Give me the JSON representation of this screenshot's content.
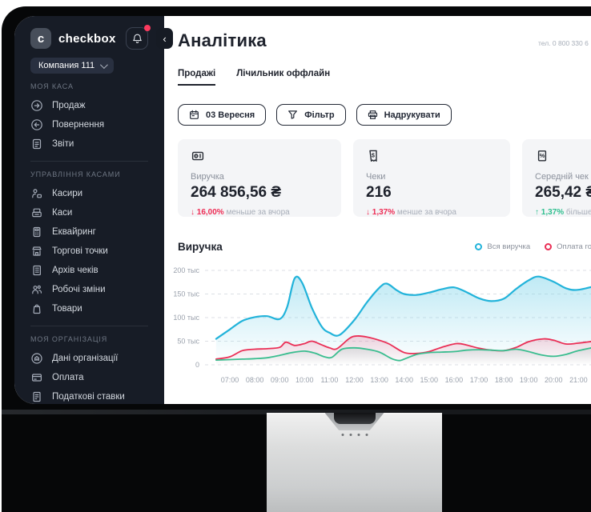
{
  "colors": {
    "sidebar_bg": "#171c26",
    "accent_red": "#ee2d55",
    "accent_green": "#2fbf8f",
    "notification_dot": "#fb3a5e",
    "card_bg": "#f4f5f7",
    "series_blue": "#22b3da",
    "series_red": "#ea2e55",
    "series_green": "#3abd8f"
  },
  "sidebar": {
    "logo": {
      "tile_letter": "c",
      "text": "checkbox"
    },
    "notifications": {
      "icon": "bell-icon",
      "has_badge": true
    },
    "company_selector": {
      "label": "Компания 111",
      "icon": "chevron-down-icon"
    },
    "sections": [
      {
        "title": "МОЯ КАСА",
        "items": [
          {
            "label": "Продаж",
            "icon": "sale-icon"
          },
          {
            "label": "Повернення",
            "icon": "refund-icon"
          },
          {
            "label": "Звіти",
            "icon": "reports-icon"
          }
        ]
      },
      {
        "title": "УПРАВЛІННЯ КАСАМИ",
        "items": [
          {
            "label": "Касири",
            "icon": "cashiers-icon"
          },
          {
            "label": "Каси",
            "icon": "cash-registers-icon"
          },
          {
            "label": "Еквайринг",
            "icon": "acquiring-icon"
          },
          {
            "label": "Торгові точки",
            "icon": "shops-icon"
          },
          {
            "label": "Архів чеків",
            "icon": "receipts-archive-icon"
          },
          {
            "label": "Робочі зміни",
            "icon": "work-shifts-icon"
          },
          {
            "label": "Товари",
            "icon": "goods-icon"
          }
        ]
      },
      {
        "title": "МОЯ ОРГАНІЗАЦІЯ",
        "items": [
          {
            "label": "Дані організації",
            "icon": "organization-icon"
          },
          {
            "label": "Оплата",
            "icon": "payment-icon"
          },
          {
            "label": "Податкові ставки",
            "icon": "tax-rates-icon"
          }
        ]
      }
    ]
  },
  "header": {
    "title": "Аналітика",
    "phone": "тел. 0 800 330 6",
    "back_icon": "‹"
  },
  "tabs": [
    {
      "label": "Продажі",
      "active": true
    },
    {
      "label": "Лічильник оффлайн",
      "active": false
    }
  ],
  "toolbar": {
    "buttons": [
      {
        "label": "03 Вересня",
        "icon": "calendar-icon"
      },
      {
        "label": "Фільтр",
        "icon": "filter-icon"
      },
      {
        "label": "Надрукувати",
        "icon": "printer-icon"
      }
    ]
  },
  "stats": [
    {
      "icon": "cash-drawer-icon",
      "label": "Виручка",
      "value": "264 856,56 ₴",
      "change": "↓ 16,00%",
      "change_dir": "down",
      "change_note": "меньше за вчора"
    },
    {
      "icon": "receipt-dollar-icon",
      "label": "Чеки",
      "value": "216",
      "change": "↓ 1,37%",
      "change_dir": "down",
      "change_note": "менше за вчора"
    },
    {
      "icon": "receipt-percent-icon",
      "label": "Середній чек",
      "value": "265,42 ₴",
      "change": "↑ 1,37%",
      "change_dir": "up",
      "change_note": "більше ніж вчора"
    }
  ],
  "chart": {
    "title": "Виручка",
    "legend": [
      {
        "label": "Вся виручка",
        "color": "#22b3da"
      },
      {
        "label": "Оплата готівкою",
        "color": "#ea2e55"
      }
    ]
  },
  "chart_data": {
    "type": "area",
    "title": "Виручка",
    "x_unit": "hour of day",
    "y_unit": "тыс (thousand ₴)",
    "ylim": [
      0,
      210
    ],
    "grid": "dashed-horizontal",
    "legend_position": "top-right",
    "xticks": [
      "07:00",
      "08:00",
      "09:00",
      "10:00",
      "11:00",
      "12:00",
      "13:00",
      "14:00",
      "15:00",
      "16:00",
      "17:00",
      "18:00",
      "19:00",
      "20:00",
      "21:00"
    ],
    "yticks": [
      {
        "v": 0,
        "label": "0"
      },
      {
        "v": 50,
        "label": "50 тыс"
      },
      {
        "v": 100,
        "label": "100 тыс"
      },
      {
        "v": 150,
        "label": "150 тыс"
      },
      {
        "v": 200,
        "label": "200 тыс"
      }
    ],
    "series": [
      {
        "name": "Вся виручка",
        "color": "#22b3da",
        "fill": "#7fd4ea",
        "fill_opacity": 0.5,
        "points": [
          [
            6.45,
            55
          ],
          [
            7,
            75
          ],
          [
            7.5,
            93
          ],
          [
            8,
            101
          ],
          [
            8.5,
            103
          ],
          [
            9,
            97
          ],
          [
            9.3,
            122
          ],
          [
            9.6,
            183
          ],
          [
            9.9,
            174
          ],
          [
            10.3,
            120
          ],
          [
            10.7,
            80
          ],
          [
            11,
            68
          ],
          [
            11.4,
            63
          ],
          [
            12,
            95
          ],
          [
            12.5,
            132
          ],
          [
            13,
            163
          ],
          [
            13.3,
            172
          ],
          [
            13.7,
            158
          ],
          [
            14,
            150
          ],
          [
            14.5,
            148
          ],
          [
            15,
            153
          ],
          [
            15.5,
            160
          ],
          [
            16,
            164
          ],
          [
            16.5,
            154
          ],
          [
            17,
            141
          ],
          [
            17.5,
            135
          ],
          [
            18,
            140
          ],
          [
            18.5,
            161
          ],
          [
            19,
            179
          ],
          [
            19.4,
            187
          ],
          [
            20,
            176
          ],
          [
            20.5,
            162
          ],
          [
            21,
            159
          ],
          [
            21.9,
            170
          ]
        ]
      },
      {
        "name": "Оплата готівкою",
        "color": "#ea2e55",
        "fill": "#f07f9b",
        "fill_opacity": 0.32,
        "points": [
          [
            6.45,
            12
          ],
          [
            7,
            17
          ],
          [
            7.5,
            30
          ],
          [
            8,
            33
          ],
          [
            8.5,
            34
          ],
          [
            9,
            37
          ],
          [
            9.25,
            48
          ],
          [
            9.6,
            41
          ],
          [
            10,
            45
          ],
          [
            10.3,
            50
          ],
          [
            10.7,
            42
          ],
          [
            11,
            36
          ],
          [
            11.3,
            34
          ],
          [
            11.8,
            56
          ],
          [
            12.1,
            61
          ],
          [
            12.5,
            59
          ],
          [
            13,
            52
          ],
          [
            13.4,
            44
          ],
          [
            14,
            26
          ],
          [
            14.5,
            24
          ],
          [
            15,
            28
          ],
          [
            15.5,
            37
          ],
          [
            16.1,
            45
          ],
          [
            16.5,
            42
          ],
          [
            17,
            35
          ],
          [
            17.5,
            31
          ],
          [
            18,
            30
          ],
          [
            18.5,
            37
          ],
          [
            19,
            49
          ],
          [
            19.6,
            55
          ],
          [
            20,
            52
          ],
          [
            20.5,
            44
          ],
          [
            21,
            46
          ],
          [
            21.9,
            52
          ]
        ]
      },
      {
        "name": "",
        "color": "#3abd8f",
        "fill": "#9fc0b8",
        "fill_opacity": 0.3,
        "points": [
          [
            6.45,
            10
          ],
          [
            7,
            11
          ],
          [
            7.5,
            12
          ],
          [
            8,
            13
          ],
          [
            8.5,
            15
          ],
          [
            9,
            20
          ],
          [
            9.5,
            26
          ],
          [
            10,
            29
          ],
          [
            10.4,
            25
          ],
          [
            10.8,
            17
          ],
          [
            11.1,
            16
          ],
          [
            11.5,
            33
          ],
          [
            12,
            36
          ],
          [
            12.5,
            33
          ],
          [
            13,
            27
          ],
          [
            13.5,
            13
          ],
          [
            13.8,
            9
          ],
          [
            14,
            12
          ],
          [
            14.5,
            22
          ],
          [
            15,
            26
          ],
          [
            15.5,
            27
          ],
          [
            16,
            28
          ],
          [
            16.5,
            31
          ],
          [
            17,
            32
          ],
          [
            17.5,
            31
          ],
          [
            18,
            30
          ],
          [
            18.5,
            33
          ],
          [
            19,
            28
          ],
          [
            19.5,
            21
          ],
          [
            20,
            18
          ],
          [
            20.5,
            22
          ],
          [
            21,
            30
          ],
          [
            21.9,
            40
          ]
        ]
      }
    ]
  }
}
